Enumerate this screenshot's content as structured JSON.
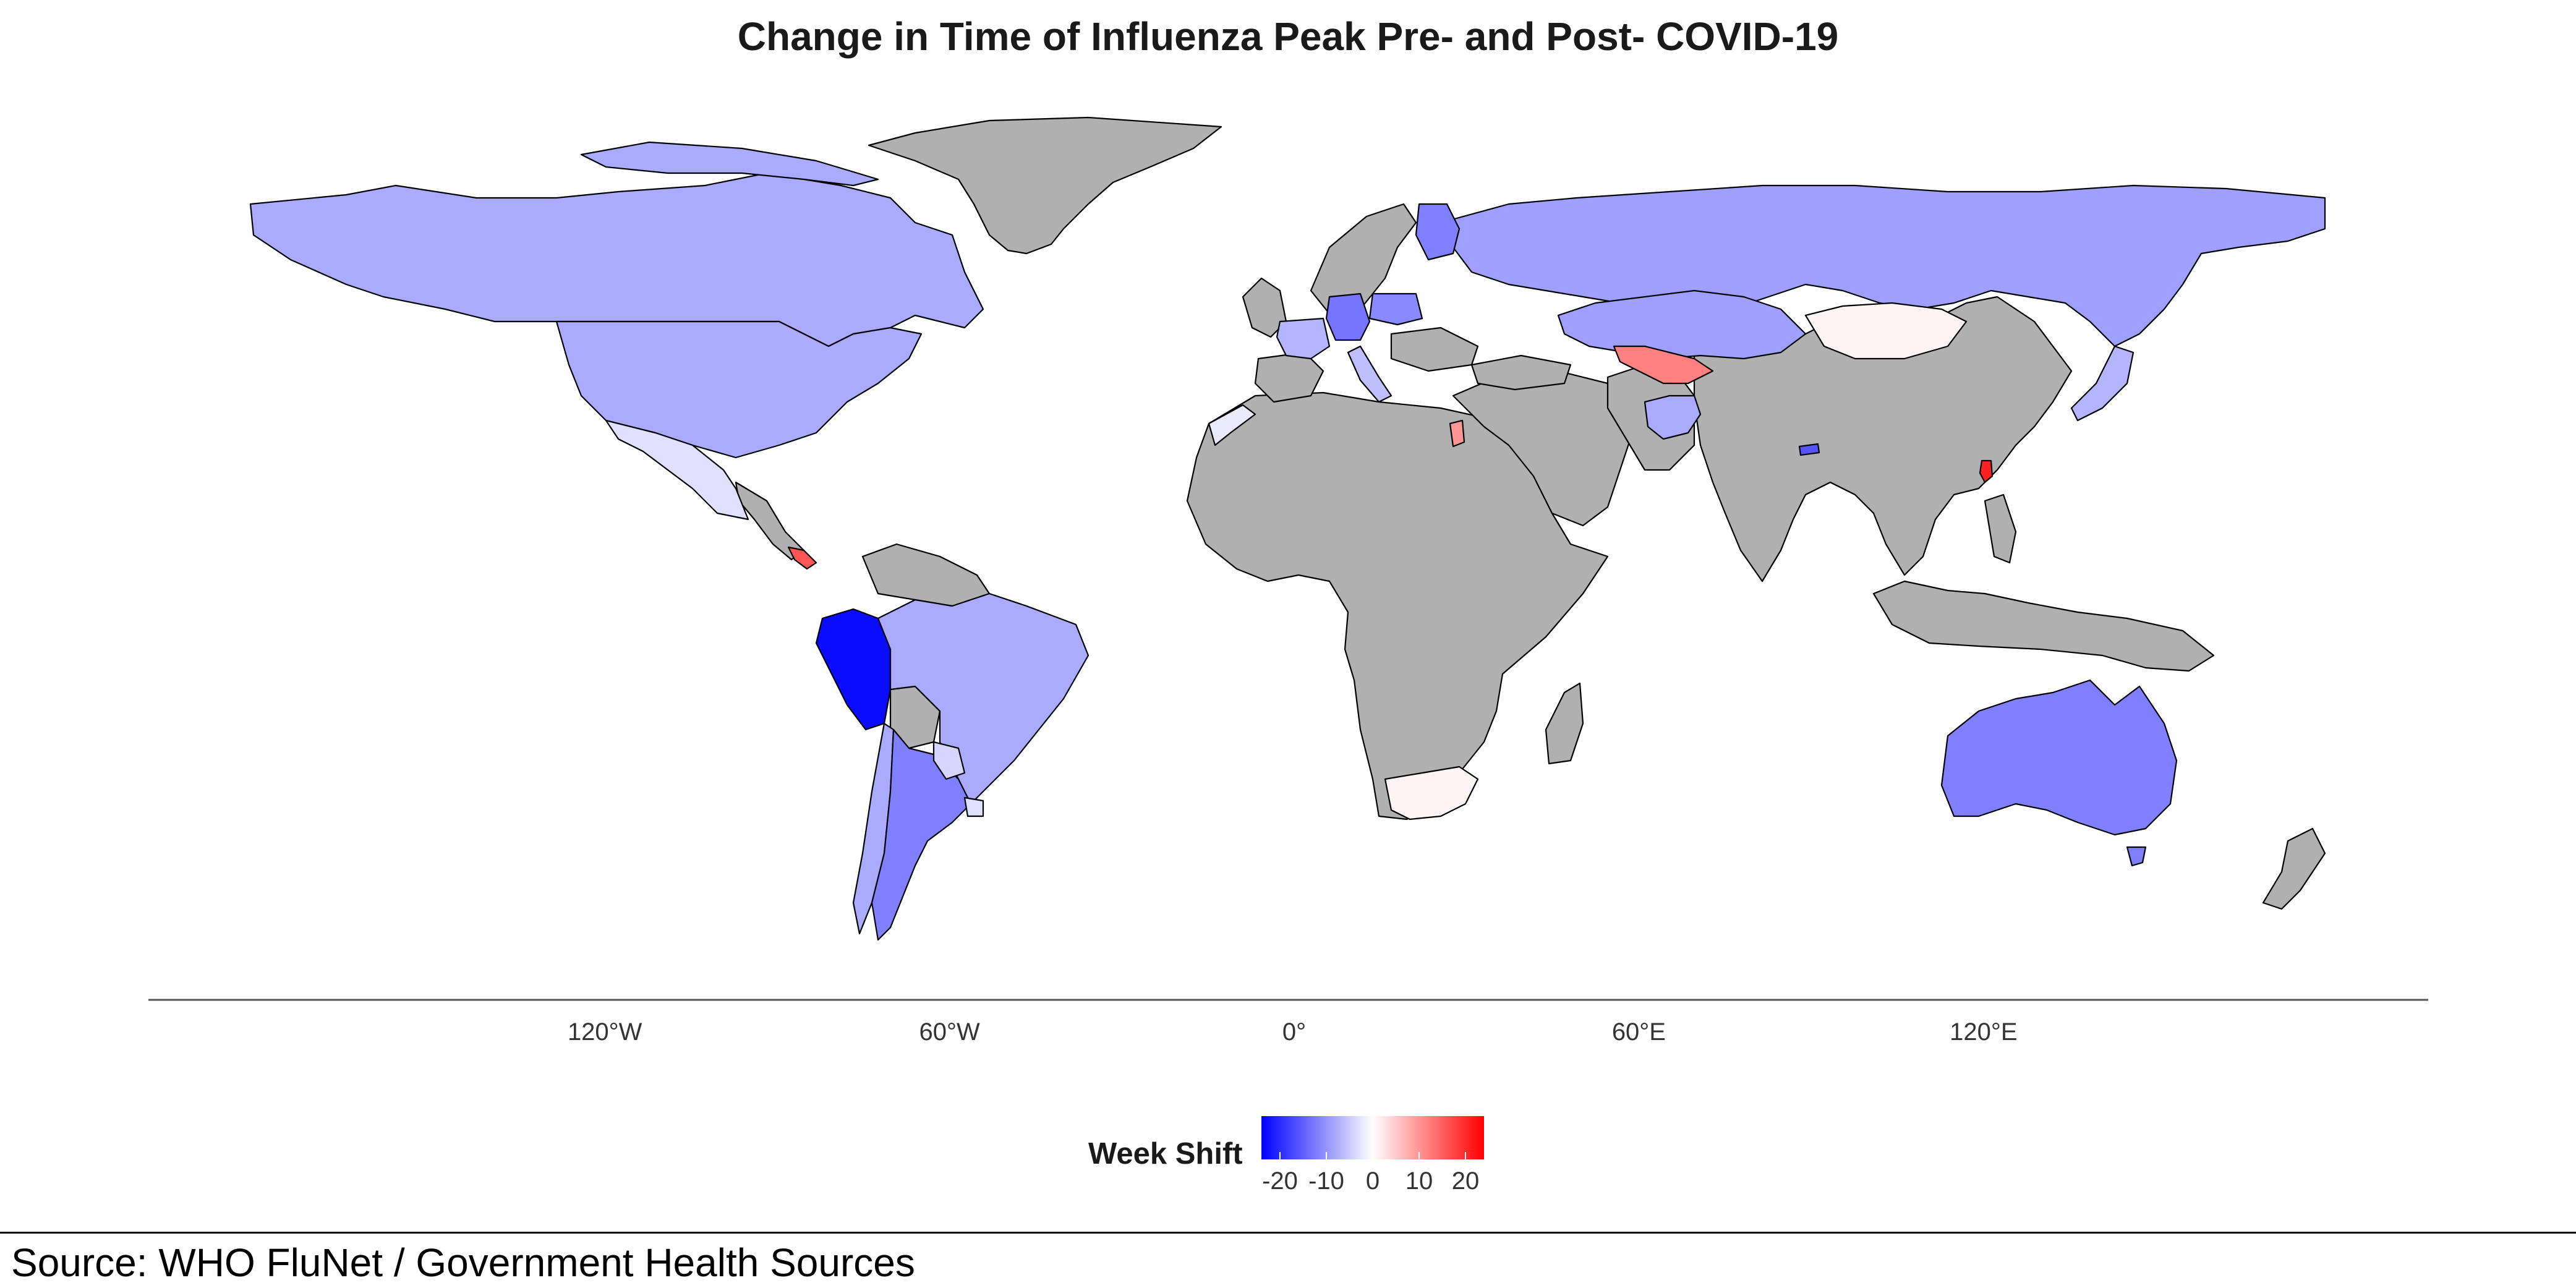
{
  "title": "Change in Time of Influenza Peak Pre- and Post- COVID-19",
  "source": "Source: WHO FluNet / Government Health Sources",
  "legend": {
    "title": "Week Shift",
    "min": -24,
    "max": 24,
    "ticks": [
      {
        "value": -20,
        "label": "-20"
      },
      {
        "value": -10,
        "label": "-10"
      },
      {
        "value": 0,
        "label": "0"
      },
      {
        "value": 10,
        "label": "10"
      },
      {
        "value": 20,
        "label": "20"
      }
    ],
    "colors": {
      "low": "#0000ff",
      "mid": "#ffffff",
      "high": "#ff0000",
      "na": "#b0b0b0"
    }
  },
  "axis": {
    "ticks": [
      {
        "lon": -120,
        "label": "120°W"
      },
      {
        "lon": -60,
        "label": "60°W"
      },
      {
        "lon": 0,
        "label": "0°"
      },
      {
        "lon": 60,
        "label": "60°E"
      },
      {
        "lon": 120,
        "label": "120°E"
      }
    ]
  },
  "chart_data": {
    "type": "choropleth",
    "title": "Change in Time of Influenza Peak Pre- and Post- COVID-19",
    "value_label": "Week Shift",
    "no_data_color": "#b0b0b0",
    "countries": [
      {
        "name": "Canada",
        "shift": -8
      },
      {
        "name": "United States",
        "shift": -8
      },
      {
        "name": "Mexico",
        "shift": -3
      },
      {
        "name": "Costa Rica",
        "shift": 16
      },
      {
        "name": "Peru",
        "shift": -23
      },
      {
        "name": "Brazil",
        "shift": -8
      },
      {
        "name": "Argentina",
        "shift": -12
      },
      {
        "name": "Chile",
        "shift": -8
      },
      {
        "name": "Paraguay",
        "shift": -4
      },
      {
        "name": "Uruguay",
        "shift": -3
      },
      {
        "name": "Russia",
        "shift": -9
      },
      {
        "name": "Kazakhstan",
        "shift": -9
      },
      {
        "name": "Mongolia",
        "shift": 1
      },
      {
        "name": "Uzbekistan",
        "shift": 12
      },
      {
        "name": "Afghanistan",
        "shift": -8
      },
      {
        "name": "Japan",
        "shift": -7
      },
      {
        "name": "Taiwan",
        "shift": 21
      },
      {
        "name": "Bhutan",
        "shift": -16
      },
      {
        "name": "Australia",
        "shift": -12
      },
      {
        "name": "South Africa",
        "shift": 1
      },
      {
        "name": "Jordan",
        "shift": 10
      },
      {
        "name": "Finland",
        "shift": -12
      },
      {
        "name": "Germany",
        "shift": -13
      },
      {
        "name": "Poland",
        "shift": -11
      },
      {
        "name": "France",
        "shift": -7
      },
      {
        "name": "Italy",
        "shift": -6
      },
      {
        "name": "Morocco",
        "shift": -2
      }
    ]
  }
}
